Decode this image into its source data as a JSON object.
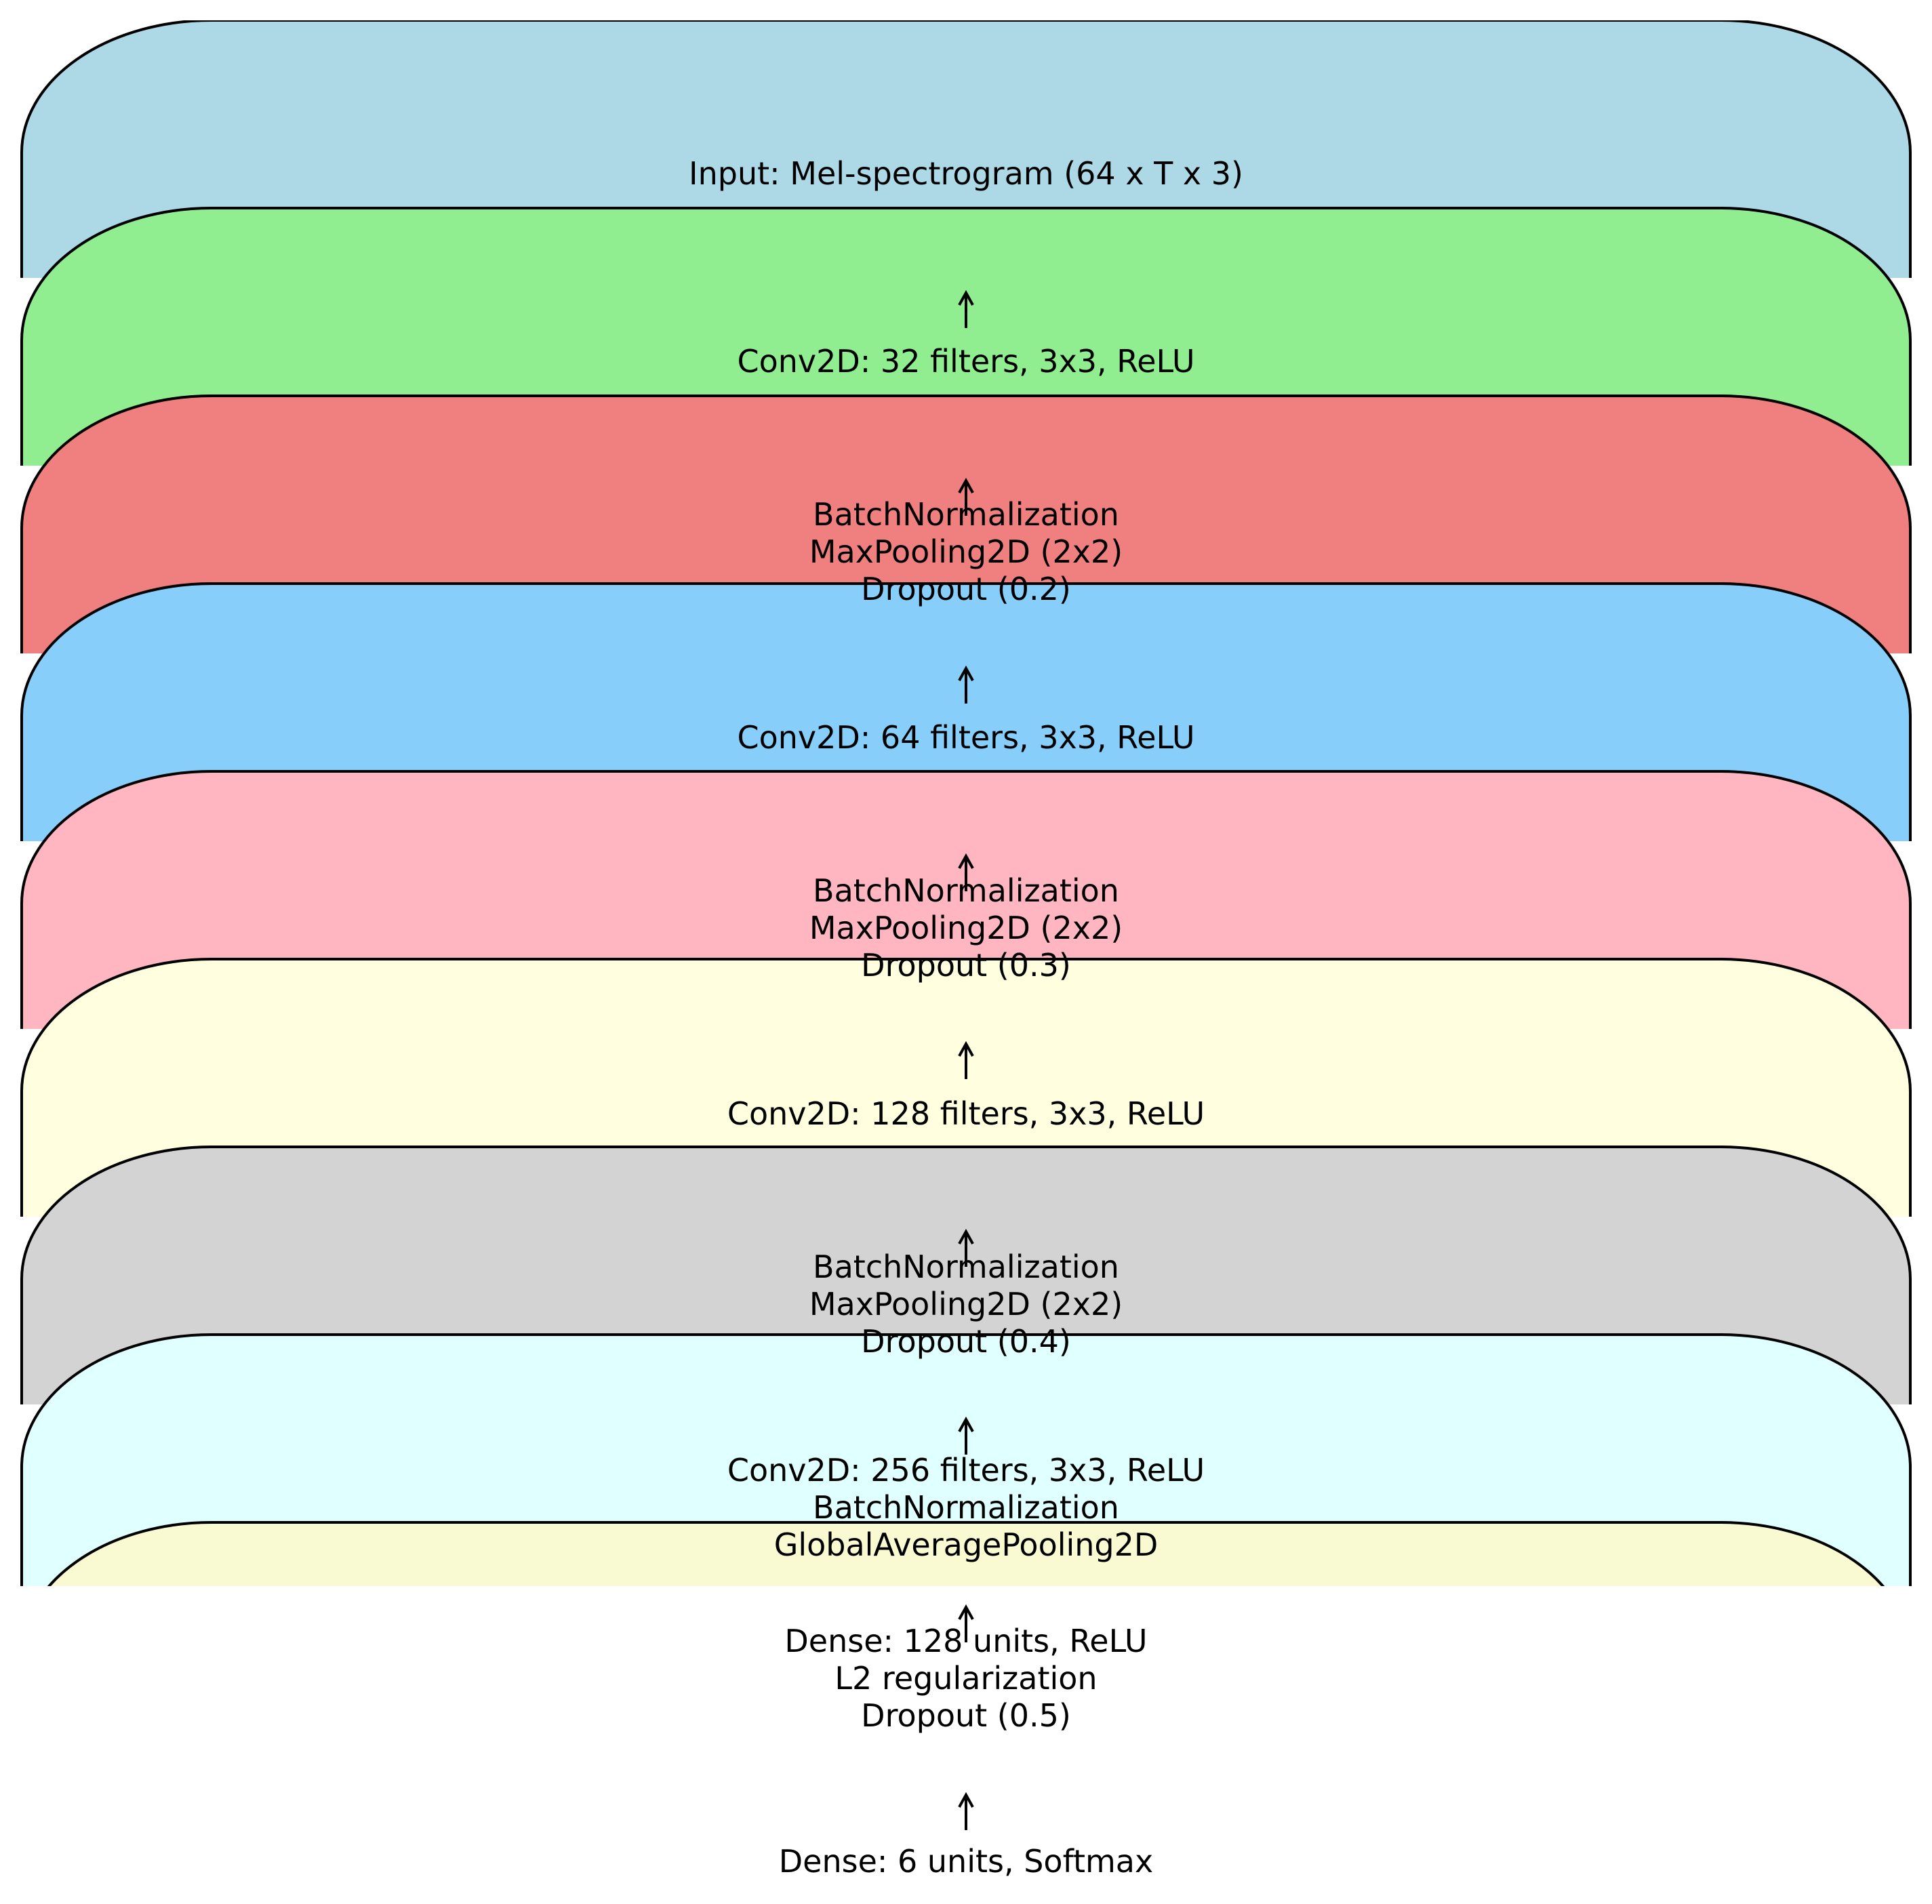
{
  "blocks": [
    {
      "color": "#ADD8E6",
      "lines": [
        "Input: Mel-spectrogram (64 x T x 3)"
      ]
    },
    {
      "color": "#90EE90",
      "lines": [
        "Conv2D: 32 filters, 3x3, ReLU"
      ]
    },
    {
      "color": "#F08080",
      "lines": [
        "BatchNormalization",
        "MaxPooling2D (2x2)",
        "Dropout (0.2)"
      ]
    },
    {
      "color": "#87CEFA",
      "lines": [
        "Conv2D: 64 filters, 3x3, ReLU"
      ]
    },
    {
      "color": "#FFB6C1",
      "lines": [
        "BatchNormalization",
        "MaxPooling2D (2x2)",
        "Dropout (0.3)"
      ]
    },
    {
      "color": "#FFFFE0",
      "lines": [
        "Conv2D: 128 filters, 3x3, ReLU"
      ]
    },
    {
      "color": "#D3D3D3",
      "lines": [
        "BatchNormalization",
        "MaxPooling2D (2x2)",
        "Dropout (0.4)"
      ]
    },
    {
      "color": "#E0FFFF",
      "lines": [
        "Conv2D: 256 filters, 3x3, ReLU",
        "BatchNormalization",
        "GlobalAveragePooling2D"
      ]
    },
    {
      "color": "#FAFAD2",
      "lines": [
        "Dense: 128 units, ReLU",
        "L2 regularization",
        "Dropout (0.5)"
      ]
    },
    {
      "color": null,
      "lines": [
        "Dense: 6 units, Softmax"
      ]
    }
  ],
  "arrow_symbol": "↑"
}
